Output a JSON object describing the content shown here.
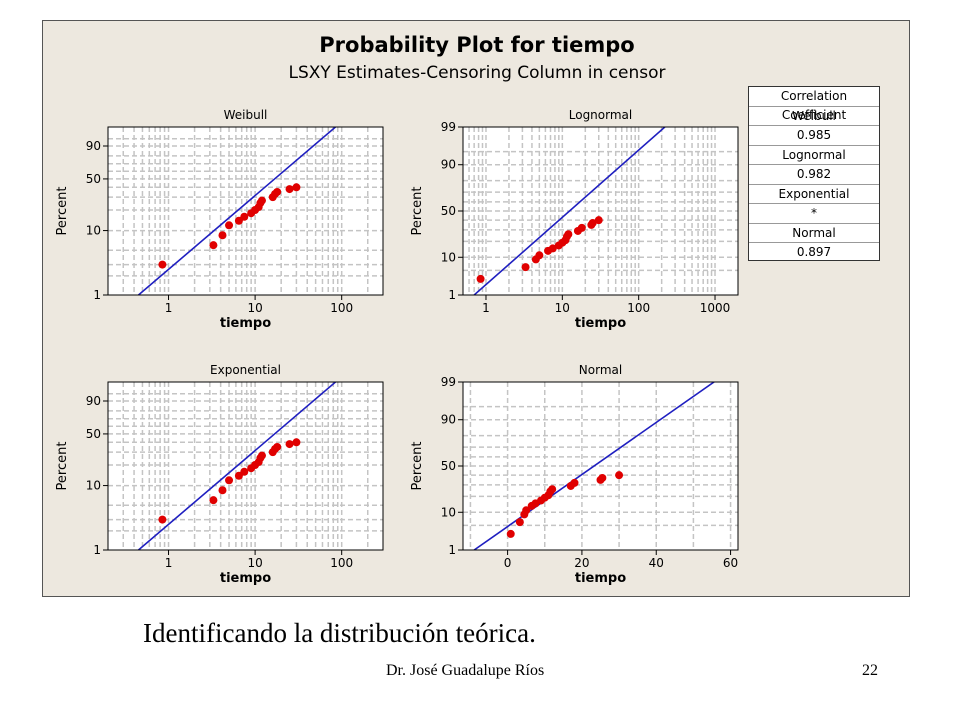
{
  "figure": {
    "title": "Probability Plot for tiempo",
    "subtitle": "LSXY Estimates-Censoring Column in censor"
  },
  "legend": {
    "items": [
      "Correlation Coefficient",
      "Weibull",
      "0.985",
      "Lognormal",
      "0.982",
      "Exponential",
      "*",
      "Normal",
      "0.897"
    ]
  },
  "caption": "Identificando la distribución teórica.",
  "footer": {
    "author": "Dr. José Guadalupe Ríos",
    "page": "22"
  },
  "colors": {
    "line": "#1f1fc0",
    "points": "#e00000",
    "grid": "#c4c4c4"
  },
  "chart_data": [
    {
      "type": "scatter",
      "title": "Weibull",
      "xlabel": "tiempo",
      "ylabel": "Percent",
      "x_scale": "log",
      "xlim": [
        0.2,
        300
      ],
      "y_scale": "weibull",
      "ylim": [
        1,
        99
      ],
      "xticks": [
        1,
        10,
        100
      ],
      "yticks": [
        1,
        10,
        50,
        90
      ],
      "points": [
        [
          0.85,
          3
        ],
        [
          3.3,
          6
        ],
        [
          4.2,
          8.5
        ],
        [
          5,
          12
        ],
        [
          6.5,
          14
        ],
        [
          7.5,
          16
        ],
        [
          9,
          18
        ],
        [
          10,
          20
        ],
        [
          11,
          22
        ],
        [
          11.5,
          25
        ],
        [
          12,
          27
        ],
        [
          16,
          30
        ],
        [
          17,
          33
        ],
        [
          18,
          35
        ],
        [
          25,
          38
        ],
        [
          30,
          40
        ]
      ],
      "fit_line": [
        [
          0.45,
          1
        ],
        [
          120,
          99.9
        ]
      ]
    },
    {
      "type": "scatter",
      "title": "Lognormal",
      "xlabel": "tiempo",
      "ylabel": "Percent",
      "x_scale": "log",
      "xlim": [
        0.5,
        2000
      ],
      "y_scale": "normal-prob",
      "ylim": [
        1,
        99
      ],
      "xticks": [
        1,
        10,
        100,
        1000
      ],
      "yticks": [
        1,
        10,
        50,
        90,
        99
      ],
      "points": [
        [
          0.85,
          3
        ],
        [
          3.3,
          6
        ],
        [
          4.5,
          9
        ],
        [
          5,
          11
        ],
        [
          6.5,
          13.5
        ],
        [
          7.5,
          15
        ],
        [
          9,
          17
        ],
        [
          10,
          19
        ],
        [
          11,
          21
        ],
        [
          11.5,
          24
        ],
        [
          12,
          26
        ],
        [
          16,
          29
        ],
        [
          18,
          32
        ],
        [
          24,
          35
        ],
        [
          25,
          37
        ],
        [
          30,
          40
        ]
      ],
      "fit_line": [
        [
          0.7,
          1
        ],
        [
          300,
          99.5
        ]
      ]
    },
    {
      "type": "scatter",
      "title": "Exponential",
      "xlabel": "tiempo",
      "ylabel": "Percent",
      "x_scale": "log",
      "xlim": [
        0.2,
        300
      ],
      "y_scale": "weibull",
      "ylim": [
        1,
        99
      ],
      "xticks": [
        1,
        10,
        100
      ],
      "yticks": [
        1,
        10,
        50,
        90
      ],
      "points": [
        [
          0.85,
          3
        ],
        [
          3.3,
          6
        ],
        [
          4.2,
          8.5
        ],
        [
          5,
          12
        ],
        [
          6.5,
          14
        ],
        [
          7.5,
          16
        ],
        [
          9,
          18
        ],
        [
          10,
          20
        ],
        [
          11,
          22
        ],
        [
          11.5,
          25
        ],
        [
          12,
          27
        ],
        [
          16,
          30
        ],
        [
          17,
          33
        ],
        [
          18,
          35
        ],
        [
          25,
          38
        ],
        [
          30,
          40
        ]
      ],
      "fit_line": [
        [
          0.45,
          1
        ],
        [
          120,
          99.9
        ]
      ]
    },
    {
      "type": "scatter",
      "title": "Normal",
      "xlabel": "tiempo",
      "ylabel": "Percent",
      "x_scale": "linear",
      "xlim": [
        -12,
        62
      ],
      "y_scale": "normal-prob",
      "ylim": [
        1,
        99
      ],
      "xticks": [
        0,
        20,
        40,
        60
      ],
      "yticks": [
        1,
        10,
        50,
        90,
        99
      ],
      "points": [
        [
          0.85,
          3
        ],
        [
          3.3,
          6
        ],
        [
          4.5,
          9
        ],
        [
          5,
          11
        ],
        [
          6.5,
          13.5
        ],
        [
          7.5,
          15
        ],
        [
          9,
          17
        ],
        [
          10,
          19
        ],
        [
          11,
          21
        ],
        [
          11.5,
          24
        ],
        [
          12,
          26
        ],
        [
          17,
          29
        ],
        [
          18,
          32
        ],
        [
          25,
          35
        ],
        [
          25.5,
          37
        ],
        [
          30,
          40
        ]
      ],
      "fit_line": [
        [
          -9,
          1
        ],
        [
          59,
          99.5
        ]
      ]
    }
  ]
}
